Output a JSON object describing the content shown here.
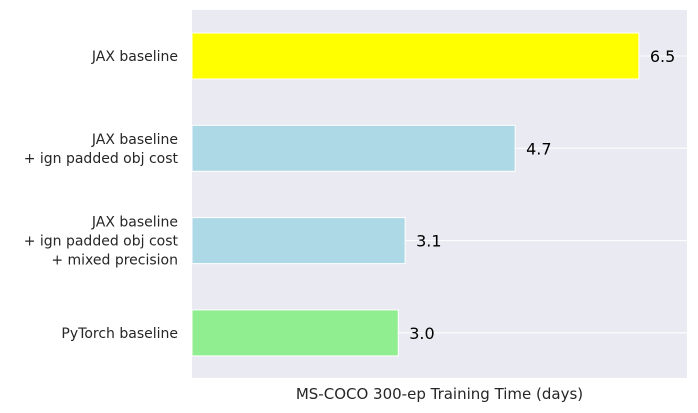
{
  "chart_data": {
    "type": "bar",
    "orientation": "horizontal",
    "categories": [
      [
        "JAX baseline"
      ],
      [
        "JAX baseline",
        "+ ign padded obj cost"
      ],
      [
        "JAX baseline",
        "+ ign padded obj cost",
        "+ mixed precision"
      ],
      [
        "PyTorch baseline"
      ]
    ],
    "values": [
      6.5,
      4.7,
      3.1,
      3.0
    ],
    "value_labels": [
      "6.5",
      "4.7",
      "3.1",
      "3.0"
    ],
    "bar_colors": [
      "#ffff00",
      "#add8e6",
      "#add8e6",
      "#90ee90"
    ],
    "xlabel": "MS-COCO 300-ep Training Time (days)",
    "ylabel": "",
    "title": "",
    "xlim": [
      0,
      7.2
    ],
    "x_ticks_shown": false,
    "grid": true,
    "background": "#eaeaf2"
  }
}
